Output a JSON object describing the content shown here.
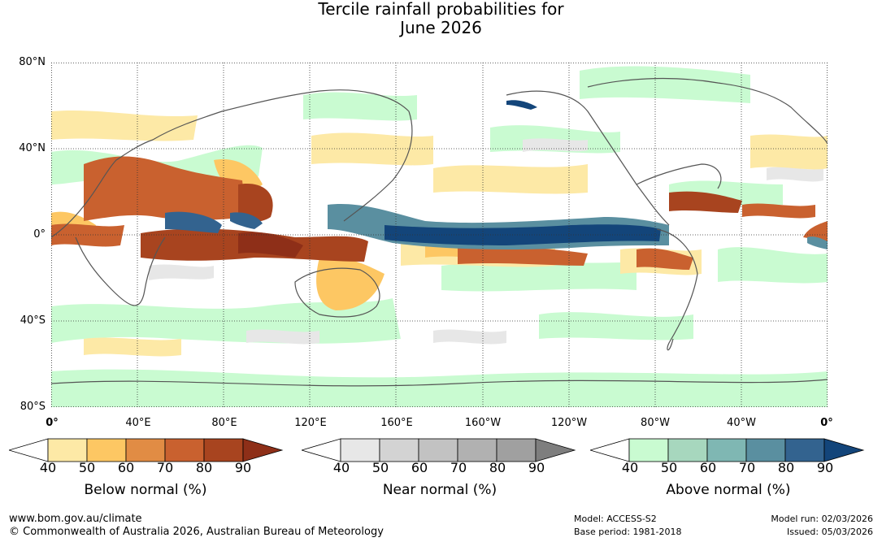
{
  "title": {
    "line1": "Tercile rainfall probabilities for",
    "line2": "June 2026"
  },
  "map": {
    "lat_ticks": [
      "80°N",
      "40°N",
      "0°",
      "40°S",
      "80°S"
    ],
    "lon_ticks": [
      "0°",
      "40°E",
      "80°E",
      "120°E",
      "160°E",
      "160°W",
      "120°W",
      "80°W",
      "40°W",
      "0°"
    ],
    "gridlines": "dotted",
    "projection": "equirectangular, 0° to 360°"
  },
  "colorbars": [
    {
      "title": "Below normal (%)",
      "ticks": [
        "40",
        "50",
        "60",
        "70",
        "80",
        "90"
      ],
      "colors": [
        "#ffffff",
        "#fde9a6",
        "#fdc763",
        "#e18c44",
        "#c9612f",
        "#a8441f",
        "#8e2f18"
      ]
    },
    {
      "title": "Near normal (%)",
      "ticks": [
        "40",
        "50",
        "60",
        "70",
        "80",
        "90"
      ],
      "colors": [
        "#ffffff",
        "#e7e7e7",
        "#d3d3d3",
        "#c2c2c2",
        "#b1b1b1",
        "#a0a0a0",
        "#7e7e7e"
      ]
    },
    {
      "title": "Above normal (%)",
      "ticks": [
        "40",
        "50",
        "60",
        "70",
        "80",
        "90"
      ],
      "colors": [
        "#ffffff",
        "#c9fbd1",
        "#a7d7be",
        "#7fb7b3",
        "#5a8fa0",
        "#33638f",
        "#13457a"
      ]
    }
  ],
  "footer": {
    "website": "www.bom.gov.au/climate",
    "copyright": "© Commonwealth of Australia 2026, Australian Bureau of Meteorology",
    "model": "Model: ACCESS-S2",
    "base_period": "Base period: 1981-2018",
    "model_run": "Model run: 02/03/2026",
    "issued": "Issued: 05/03/2026"
  }
}
